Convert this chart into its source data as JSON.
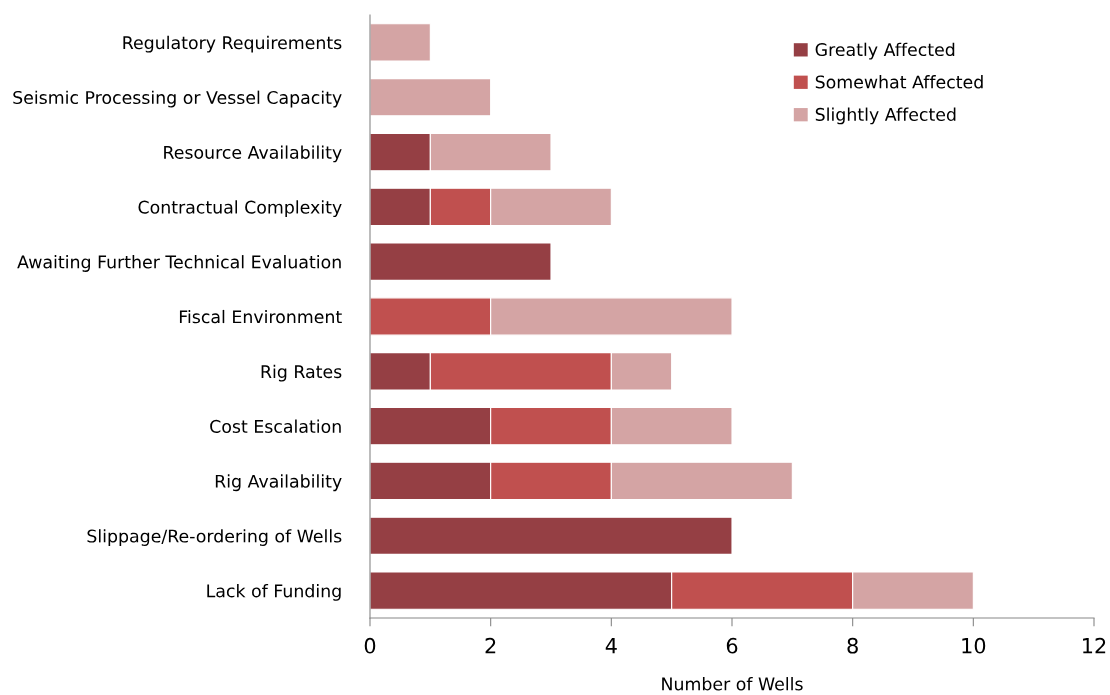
{
  "chart_data": {
    "type": "bar",
    "orientation": "horizontal",
    "stacked": true,
    "xlabel": "Number of Wells",
    "categories": [
      "Regulatory Requirements",
      "Seismic Processing or Vessel Capacity",
      "Resource Availability",
      "Contractual Complexity",
      "Awaiting Further Technical Evaluation",
      "Fiscal Environment",
      "Rig Rates",
      "Cost Escalation",
      "Rig Availability",
      "Slippage/Re-ordering of Wells",
      "Lack of Funding"
    ],
    "series": [
      {
        "name": "Greatly Affected",
        "color": "#953f44",
        "values": [
          0,
          0,
          1,
          1,
          3,
          0,
          1,
          2,
          2,
          6,
          5
        ]
      },
      {
        "name": "Somewhat Affected",
        "color": "#c0504f",
        "values": [
          0,
          0,
          0,
          1,
          0,
          2,
          3,
          2,
          2,
          0,
          3
        ]
      },
      {
        "name": "Slightly Affected",
        "color": "#d4a4a4",
        "values": [
          1,
          2,
          2,
          2,
          0,
          4,
          1,
          2,
          3,
          0,
          2
        ]
      }
    ],
    "xlim": [
      0,
      12
    ],
    "xticks": [
      0,
      2,
      4,
      6,
      8,
      10,
      12
    ],
    "grid": false,
    "legend": "top right"
  }
}
